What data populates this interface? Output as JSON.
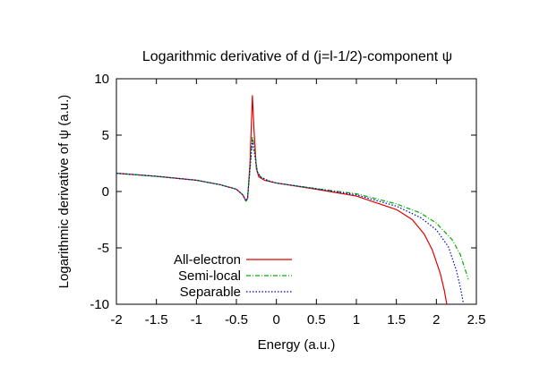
{
  "chart_data": {
    "type": "line",
    "title": "Logarithmic derivative of d (j=l-1/2)-component ψ",
    "xlabel": "Energy (a.u.)",
    "ylabel": "Logarithmic derivative of ψ (a.u.)",
    "xlim": [
      -2,
      2.5
    ],
    "ylim": [
      -10,
      10
    ],
    "xticks": [
      -2,
      -1.5,
      -1,
      -0.5,
      0,
      0.5,
      1,
      1.5,
      2,
      2.5
    ],
    "xtick_labels": [
      "-2",
      "-1.5",
      "-1",
      "-0.5",
      "0",
      "0.5",
      "1",
      "1.5",
      "2",
      "2.5"
    ],
    "yticks": [
      -10,
      -5,
      0,
      5,
      10
    ],
    "ytick_labels": [
      "-10",
      "-5",
      "0",
      "5",
      "10"
    ],
    "grid": false,
    "legend_position": "bottom-left",
    "series": [
      {
        "name": "All-electron",
        "color": "#e00000",
        "dash": "",
        "points": [
          [
            -2,
            1.62
          ],
          [
            -1.5,
            1.35
          ],
          [
            -1,
            1.0
          ],
          [
            -0.7,
            0.6
          ],
          [
            -0.5,
            0.2
          ],
          [
            -0.42,
            -0.3
          ],
          [
            -0.38,
            -0.85
          ],
          [
            -0.36,
            -0.6
          ],
          [
            -0.33,
            2.5
          ],
          [
            -0.3,
            8.5
          ],
          [
            -0.28,
            5.5
          ],
          [
            -0.25,
            2.0
          ],
          [
            -0.22,
            1.3
          ],
          [
            -0.15,
            1.0
          ],
          [
            0,
            0.75
          ],
          [
            0.5,
            0.2
          ],
          [
            1,
            -0.4
          ],
          [
            1.5,
            -1.6
          ],
          [
            1.7,
            -2.5
          ],
          [
            1.85,
            -3.8
          ],
          [
            1.95,
            -5.2
          ],
          [
            2.05,
            -7.3
          ],
          [
            2.1,
            -8.8
          ],
          [
            2.13,
            -10
          ]
        ]
      },
      {
        "name": "Semi-local",
        "color": "#00b000",
        "dash": "5,2,1,2",
        "points": [
          [
            -2,
            1.62
          ],
          [
            -1.5,
            1.35
          ],
          [
            -1,
            1.0
          ],
          [
            -0.7,
            0.6
          ],
          [
            -0.5,
            0.2
          ],
          [
            -0.42,
            -0.3
          ],
          [
            -0.38,
            -0.85
          ],
          [
            -0.36,
            -0.6
          ],
          [
            -0.33,
            2.0
          ],
          [
            -0.3,
            4.9
          ],
          [
            -0.27,
            3.5
          ],
          [
            -0.24,
            1.8
          ],
          [
            -0.2,
            1.3
          ],
          [
            -0.1,
            0.95
          ],
          [
            0,
            0.75
          ],
          [
            0.5,
            0.25
          ],
          [
            1,
            -0.2
          ],
          [
            1.5,
            -1.1
          ],
          [
            1.8,
            -1.9
          ],
          [
            2.0,
            -2.8
          ],
          [
            2.2,
            -4.3
          ],
          [
            2.3,
            -5.6
          ],
          [
            2.4,
            -7.8
          ]
        ]
      },
      {
        "name": "Separable",
        "color": "#0000d0",
        "dash": "1.5,2",
        "points": [
          [
            -2,
            1.62
          ],
          [
            -1.5,
            1.35
          ],
          [
            -1,
            1.0
          ],
          [
            -0.7,
            0.6
          ],
          [
            -0.5,
            0.2
          ],
          [
            -0.42,
            -0.3
          ],
          [
            -0.38,
            -0.85
          ],
          [
            -0.36,
            -0.6
          ],
          [
            -0.33,
            2.0
          ],
          [
            -0.3,
            4.5
          ],
          [
            -0.27,
            3.2
          ],
          [
            -0.24,
            1.8
          ],
          [
            -0.2,
            1.3
          ],
          [
            -0.1,
            0.95
          ],
          [
            0,
            0.75
          ],
          [
            0.5,
            0.25
          ],
          [
            1,
            -0.3
          ],
          [
            1.5,
            -1.3
          ],
          [
            1.8,
            -2.3
          ],
          [
            2.0,
            -3.4
          ],
          [
            2.15,
            -4.9
          ],
          [
            2.25,
            -7.0
          ],
          [
            2.3,
            -8.5
          ],
          [
            2.34,
            -10
          ]
        ]
      }
    ]
  }
}
